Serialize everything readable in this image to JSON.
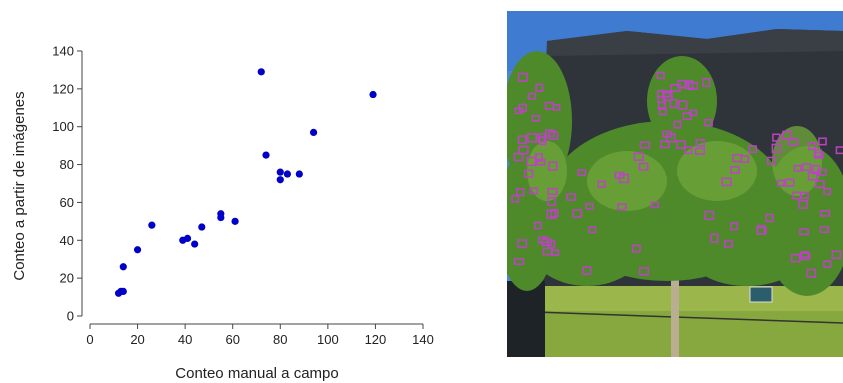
{
  "chart_data": {
    "type": "scatter",
    "xlabel": "Conteo manual a campo",
    "ylabel": "Conteo a partir de imágenes",
    "xlim": [
      0,
      140
    ],
    "ylim": [
      0,
      140
    ],
    "xticks": [
      0,
      20,
      40,
      60,
      80,
      100,
      120,
      140
    ],
    "yticks": [
      0,
      20,
      40,
      60,
      80,
      100,
      120,
      140
    ],
    "grid": false,
    "marker_color": "#0000c8",
    "points": [
      {
        "x": 12,
        "y": 12
      },
      {
        "x": 13,
        "y": 13
      },
      {
        "x": 14,
        "y": 13
      },
      {
        "x": 14,
        "y": 26
      },
      {
        "x": 20,
        "y": 35
      },
      {
        "x": 26,
        "y": 48
      },
      {
        "x": 39,
        "y": 40
      },
      {
        "x": 41,
        "y": 41
      },
      {
        "x": 44,
        "y": 38
      },
      {
        "x": 47,
        "y": 47
      },
      {
        "x": 55,
        "y": 52
      },
      {
        "x": 55,
        "y": 54
      },
      {
        "x": 61,
        "y": 50
      },
      {
        "x": 72,
        "y": 129
      },
      {
        "x": 74,
        "y": 85
      },
      {
        "x": 80,
        "y": 72
      },
      {
        "x": 80,
        "y": 76
      },
      {
        "x": 83,
        "y": 75
      },
      {
        "x": 88,
        "y": 75
      },
      {
        "x": 94,
        "y": 97
      },
      {
        "x": 119,
        "y": 117
      }
    ]
  },
  "photo": {
    "description_icon": "orchard-tree-photo",
    "colors": {
      "sky": "#4a86d6",
      "shade_net": "#2f343a",
      "foliage": "#4f8a2a",
      "grass": "#9bb64a",
      "detection_box": "#c040c8"
    }
  }
}
